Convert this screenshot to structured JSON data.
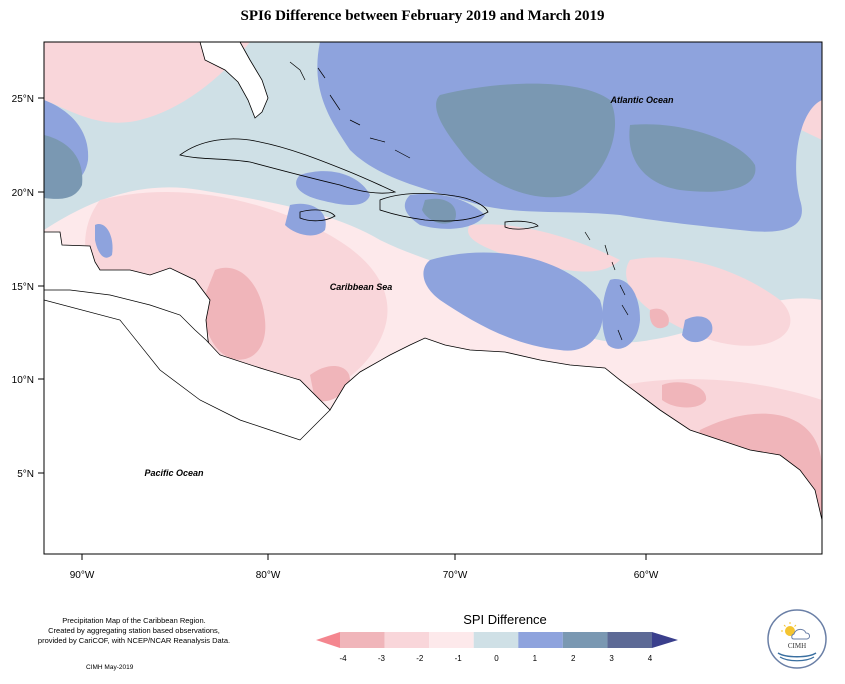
{
  "title": "SPI6 Difference between February 2019 and March 2019",
  "map": {
    "type": "choropleth-contour",
    "region": "Caribbean",
    "labels": {
      "atlantic": "Atlantic Ocean",
      "caribbean": "Caribbean Sea",
      "pacific": "Pacific Ocean"
    },
    "lat_ticks": [
      "25°N",
      "20°N",
      "15°N",
      "10°N",
      "5°N"
    ],
    "lon_ticks": [
      "90°W",
      "80°W",
      "70°W",
      "60°W"
    ]
  },
  "legend": {
    "title": "SPI Difference",
    "ticks": [
      "-4",
      "-3",
      "-2",
      "-1",
      "0",
      "1",
      "2",
      "3",
      "4"
    ],
    "colors": [
      "#f4868f",
      "#f0b5ba",
      "#f9d6da",
      "#fde9eb",
      "#cfe0e6",
      "#8ea3dd",
      "#7a98b2",
      "#5d6a96",
      "#3a3f8c"
    ]
  },
  "footnote": {
    "line1": "Precipitation Map of the Caribbean Region.",
    "line2": "Created by aggregating station based observations,",
    "line3": "provided by CariCOF, with NCEP/NCAR Reanalysis Data."
  },
  "credit": "CIMH May-2019",
  "logo": {
    "text": "CIMH"
  }
}
